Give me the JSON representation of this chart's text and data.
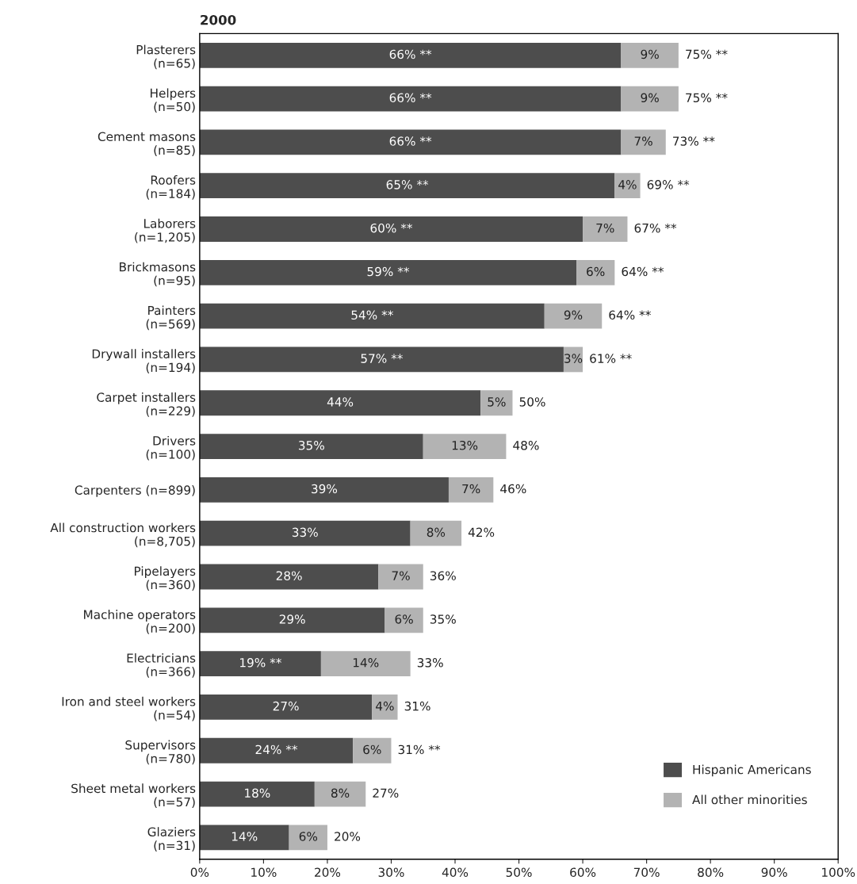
{
  "chart_data": {
    "type": "bar",
    "orientation": "horizontal",
    "stacked": true,
    "title": "2000",
    "categories": [
      "Plasterers\n(n=65)",
      "Helpers\n(n=50)",
      "Cement masons\n(n=85)",
      "Roofers\n(n=184)",
      "Laborers\n(n=1,205)",
      "Brickmasons\n(n=95)",
      "Painters\n(n=569)",
      "Drywall installers\n(n=194)",
      "Carpet installers\n(n=229)",
      "Drivers\n(n=100)",
      "Carpenters (n=899)",
      "All construction workers\n(n=8,705)",
      "Pipelayers\n(n=360)",
      "Machine operators\n(n=200)",
      "Electricians\n(n=366)",
      "Iron and steel workers\n(n=54)",
      "Supervisors\n(n=780)",
      "Sheet metal workers\n(n=57)",
      "Glaziers\n(n=31)"
    ],
    "series": [
      {
        "name": "Hispanic Americans",
        "color": "#4d4d4d",
        "values": [
          66,
          66,
          66,
          65,
          60,
          59,
          54,
          57,
          44,
          35,
          39,
          33,
          28,
          29,
          19,
          27,
          24,
          18,
          14
        ],
        "value_labels": [
          "66% **",
          "66% **",
          "66% **",
          "65% **",
          "60% **",
          "59% **",
          "54% **",
          "57% **",
          "44%",
          "35%",
          "39%",
          "33%",
          "28%",
          "29%",
          "19% **",
          "27%",
          "24% **",
          "18%",
          "14%"
        ]
      },
      {
        "name": "All other minorities",
        "color": "#b3b3b3",
        "values": [
          9,
          9,
          7,
          4,
          7,
          6,
          9,
          3,
          5,
          13,
          7,
          8,
          7,
          6,
          14,
          4,
          6,
          8,
          6
        ],
        "value_labels": [
          "9%",
          "9%",
          "7%",
          "4%",
          "7%",
          "6%",
          "9%",
          "3%",
          "5%",
          "13%",
          "7%",
          "8%",
          "7%",
          "6%",
          "14%",
          "4%",
          "6%",
          "8%",
          "6%"
        ]
      }
    ],
    "totals": [
      "75% **",
      "75% **",
      "73% **",
      "69% **",
      "67% **",
      "64% **",
      "64% **",
      "61% **",
      "50%",
      "48%",
      "46%",
      "42%",
      "36%",
      "35%",
      "33%",
      "31%",
      "31% **",
      "27%",
      "20%"
    ],
    "xlim": [
      0,
      100
    ],
    "xticks": [
      {
        "value": 0,
        "label": "0%"
      },
      {
        "value": 10,
        "label": "10%"
      },
      {
        "value": 20,
        "label": "20%"
      },
      {
        "value": 30,
        "label": "30%"
      },
      {
        "value": 40,
        "label": "40%"
      },
      {
        "value": 50,
        "label": "50%"
      },
      {
        "value": 60,
        "label": "60%"
      },
      {
        "value": 70,
        "label": "70%"
      },
      {
        "value": 80,
        "label": "80%"
      },
      {
        "value": 90,
        "label": "90%"
      },
      {
        "value": 100,
        "label": "100%"
      }
    ],
    "grid": false,
    "legend": "bottom right"
  }
}
